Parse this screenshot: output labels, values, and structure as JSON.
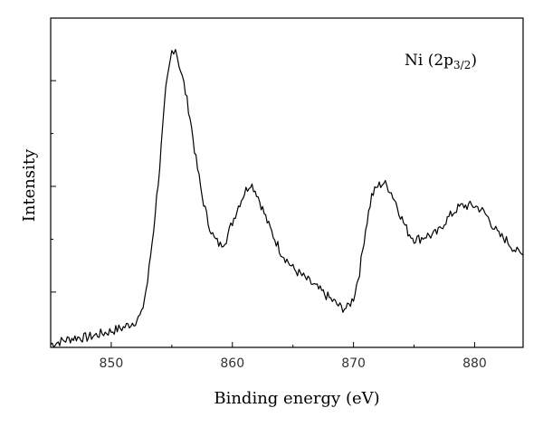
{
  "chart_data": {
    "type": "line",
    "xlabel": "Binding energy (eV)",
    "ylabel": "Intensity",
    "annotation": {
      "base": "Ni (2p",
      "subscript": "3/2",
      "close": ")"
    },
    "xlim": [
      845,
      884
    ],
    "ylim": [
      0,
      1
    ],
    "x_ticks": [
      850,
      860,
      870,
      880
    ],
    "y_ticks": [
      0.168,
      0.489,
      0.81
    ],
    "y_tick_labels_shown": false,
    "grid": false,
    "line_color": "#000000",
    "series": [
      {
        "x": [
          845,
          846,
          847,
          848,
          849,
          850,
          851,
          852,
          852.5,
          853,
          853.5,
          854,
          854.5,
          855,
          855.3,
          855.6,
          856,
          856.5,
          857,
          857.5,
          858,
          858.5,
          859,
          859.5,
          860,
          860.5,
          861,
          861.5,
          862,
          862.5,
          863,
          863.5,
          864,
          865,
          866,
          867,
          868,
          869,
          869.5,
          870,
          870.5,
          871,
          871.5,
          872,
          872.5,
          873,
          873.5,
          874,
          874.5,
          875,
          875.5,
          876,
          876.5,
          877,
          877.5,
          878,
          878.5,
          879,
          879.5,
          880,
          880.5,
          881,
          881.5,
          882,
          882.5,
          883,
          883.5,
          884
        ],
        "y": [
          0.01,
          0.02,
          0.03,
          0.03,
          0.04,
          0.05,
          0.06,
          0.08,
          0.1,
          0.2,
          0.36,
          0.55,
          0.78,
          0.9,
          0.91,
          0.86,
          0.8,
          0.7,
          0.57,
          0.46,
          0.38,
          0.33,
          0.31,
          0.33,
          0.38,
          0.43,
          0.47,
          0.5,
          0.47,
          0.42,
          0.37,
          0.33,
          0.29,
          0.24,
          0.21,
          0.18,
          0.15,
          0.12,
          0.12,
          0.15,
          0.23,
          0.36,
          0.46,
          0.49,
          0.5,
          0.48,
          0.44,
          0.39,
          0.35,
          0.33,
          0.33,
          0.34,
          0.34,
          0.35,
          0.38,
          0.4,
          0.42,
          0.43,
          0.43,
          0.43,
          0.42,
          0.4,
          0.37,
          0.34,
          0.33,
          0.31,
          0.29,
          0.28
        ]
      }
    ]
  }
}
